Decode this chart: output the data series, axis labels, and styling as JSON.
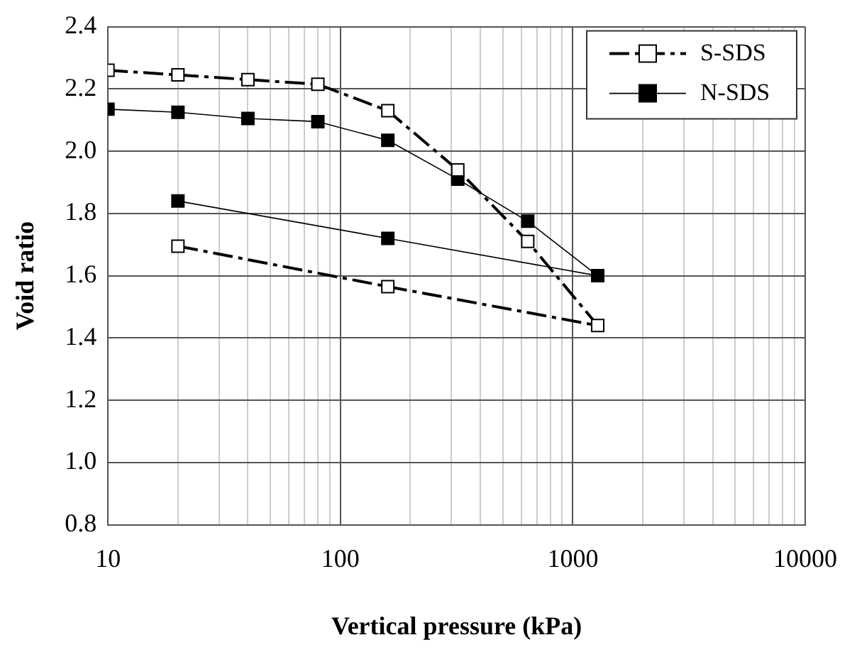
{
  "chart_data": {
    "type": "line",
    "xlabel": "Vertical pressure (kPa)",
    "ylabel": "Void ratio",
    "log": "x",
    "grid": true,
    "legend": "top right",
    "marker": "square",
    "xlim": [
      10,
      10000
    ],
    "ylim": [
      0.8,
      2.4
    ],
    "xticks": [
      10,
      {
        "value": 20,
        "label": null
      },
      {
        "value": 30,
        "label": null
      },
      {
        "value": 40,
        "label": null
      },
      {
        "value": 50,
        "label": null
      },
      {
        "value": 60,
        "label": null
      },
      {
        "value": 70,
        "label": null
      },
      {
        "value": 80,
        "label": null
      },
      {
        "value": 90,
        "label": null
      },
      100,
      {
        "value": 200,
        "label": null
      },
      {
        "value": 300,
        "label": null
      },
      {
        "value": 400,
        "label": null
      },
      {
        "value": 500,
        "label": null
      },
      {
        "value": 600,
        "label": null
      },
      {
        "value": 700,
        "label": null
      },
      {
        "value": 800,
        "label": null
      },
      {
        "value": 900,
        "label": null
      },
      1000,
      {
        "value": 2000,
        "label": null
      },
      {
        "value": 3000,
        "label": null
      },
      {
        "value": 4000,
        "label": null
      },
      {
        "value": 5000,
        "label": null
      },
      {
        "value": 6000,
        "label": null
      },
      {
        "value": 7000,
        "label": null
      },
      {
        "value": 8000,
        "label": null
      },
      {
        "value": 9000,
        "label": null
      },
      10000
    ],
    "yticks": [
      {
        "value": 0.8,
        "label": "0.8"
      },
      {
        "value": 1.0,
        "label": "1.0"
      },
      1.2,
      1.4,
      1.6,
      1.8,
      {
        "value": 2.0,
        "label": "2.0"
      },
      2.2,
      2.4
    ],
    "series": [
      {
        "name": "S-SDS",
        "color": "#000000",
        "line_style": "dashed",
        "x": [
          10,
          20,
          40,
          80,
          160,
          320,
          640,
          1280,
          160,
          20
        ],
        "values": [
          2.26,
          2.245,
          2.23,
          2.215,
          2.13,
          1.94,
          1.71,
          1.44,
          1.565,
          1.695
        ]
      },
      {
        "name": "N-SDS",
        "color": "#000000",
        "line_style": "solid",
        "x": [
          10,
          20,
          40,
          80,
          160,
          320,
          640,
          1280,
          160,
          20
        ],
        "values": [
          2.135,
          2.125,
          2.105,
          2.095,
          2.035,
          1.91,
          1.775,
          1.6,
          1.72,
          1.84
        ]
      }
    ]
  }
}
